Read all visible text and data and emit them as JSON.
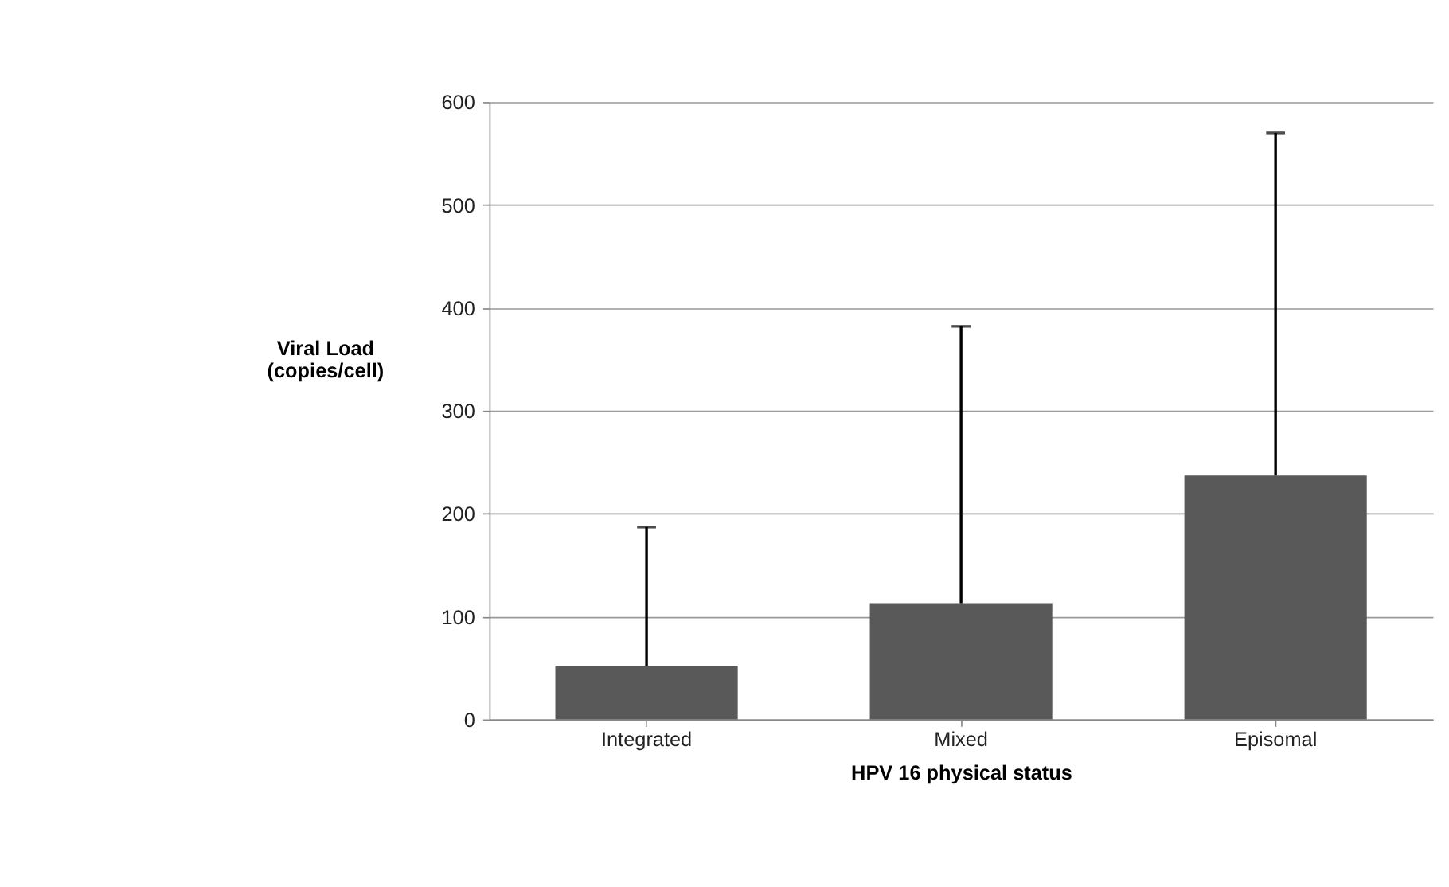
{
  "chart_data": {
    "type": "bar",
    "xlabel": "HPV 16 physical status",
    "ylabel": "Viral  Load\n(copies/cell)",
    "categories": [
      "Integrated",
      "Mixed",
      "Episomal"
    ],
    "values": [
      52,
      113,
      237
    ],
    "color": "#595959",
    "errors": [
      [
        52,
        187
      ],
      [
        113,
        382
      ],
      [
        237,
        570
      ]
    ],
    "ylim": [
      0,
      600
    ],
    "yticks": [
      0,
      100,
      200,
      300,
      400,
      500,
      600
    ],
    "grid": "y"
  }
}
